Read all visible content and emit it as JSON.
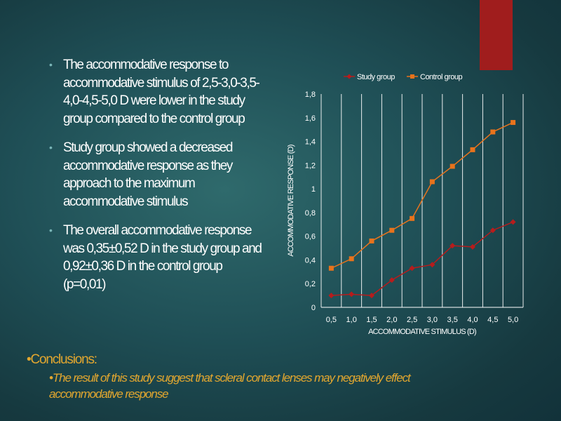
{
  "bullets": [
    "The accommodative response to accommodative stimulus of 2,5-3,0-3,5-4,0-4,5-5,0 D were lower in the study group compared to the control group",
    " Study group showed a decreased accommodative response as they approach to the maximum accommodative stimulus",
    "The overall accommodative response was 0,35±0,52 D in the study group and 0,92±0,36 D in the control group (p=0,01)"
  ],
  "conclusions": {
    "heading": "•Conclusions:",
    "text": "•The result of this study suggest that scleral contact lenses may negatively effect accommodative response"
  },
  "colors": {
    "accent_red": "#a01d1d",
    "study": "#b71c1c",
    "control": "#e8731c",
    "conclusion": "#e3a72f"
  },
  "chart_data": {
    "type": "line",
    "categories": [
      "0,5",
      "1,0",
      "1,5",
      "2,0",
      "2,5",
      "3,0",
      "3,5",
      "4,0",
      "4,5",
      "5,0"
    ],
    "series": [
      {
        "name": "Study group",
        "values": [
          0.1,
          0.11,
          0.1,
          0.23,
          0.33,
          0.36,
          0.52,
          0.51,
          0.65,
          0.72
        ],
        "color": "#b71c1c",
        "marker": "diamond"
      },
      {
        "name": "Control group",
        "values": [
          0.33,
          0.41,
          0.56,
          0.65,
          0.75,
          1.06,
          1.19,
          1.33,
          1.48,
          1.56
        ],
        "color": "#e8731c",
        "marker": "square"
      }
    ],
    "xlabel": "ACCOMMODATIVE STIMULUS (D)",
    "ylabel": "ACCOMMODATIVE RESPONSE (D)",
    "yticks": [
      "0",
      "0,2",
      "0,4",
      "0,6",
      "0,8",
      "1",
      "1,2",
      "1,4",
      "1,6",
      "1,8"
    ],
    "ylim": [
      0,
      1.8
    ],
    "grid": "vertical",
    "legend": "top"
  }
}
